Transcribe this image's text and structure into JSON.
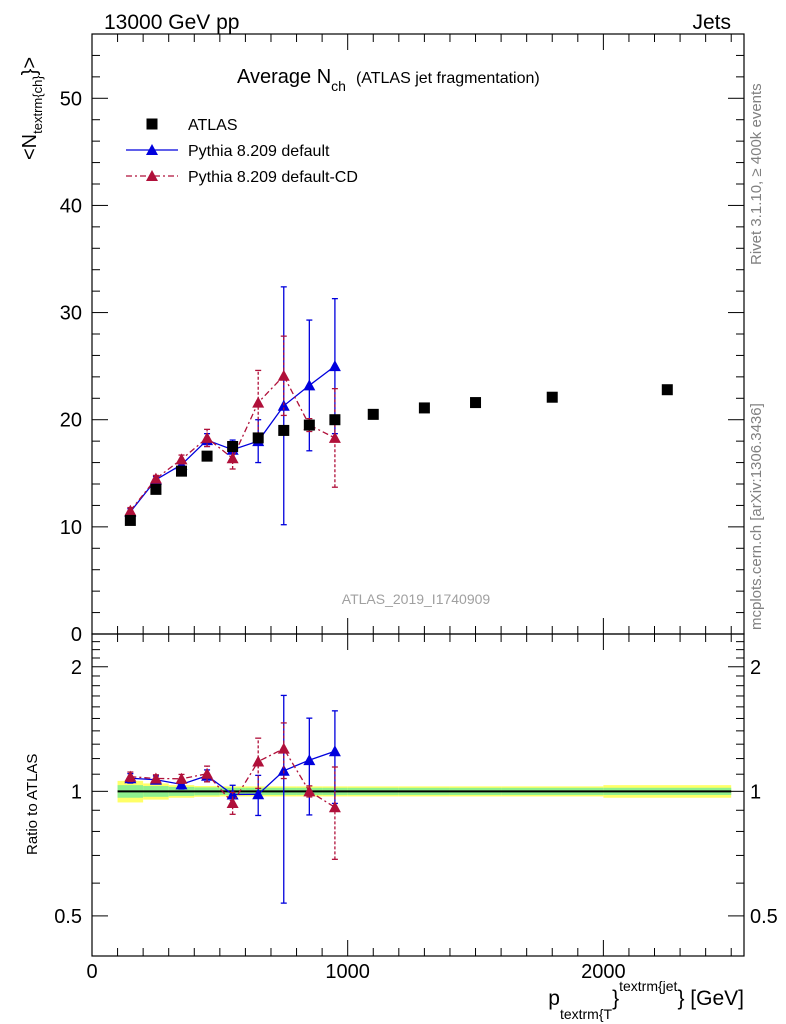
{
  "header": {
    "left": "13000 GeV pp",
    "right": "Jets"
  },
  "side_labels": {
    "rivet": "Rivet 3.1.10, ≥ 400k events",
    "mcplots": "mcplots.cern.ch [arXiv:1306.3436]"
  },
  "chart_data": {
    "type": "scatter",
    "title_main": "Average N",
    "title_sub": "ch",
    "title_note": "(ATLAS jet fragmentation)",
    "analysis_id": "ATLAS_2019_I1740909",
    "ylabel_main": "<N",
    "ylabel_sub": "textrm{ch}",
    "ylabel_end": "}>",
    "ratio_ylabel": "Ratio to ATLAS",
    "xlabel_p": "p",
    "xlabel_sub": "textrm{T",
    "xlabel_brace": "}",
    "xlabel_sup": "textrm{jet",
    "xlabel_end": "} [GeV]",
    "xlim": [
      0,
      2550
    ],
    "ylim": [
      0,
      56
    ],
    "ratio_ylim": [
      0.4,
      2.4
    ],
    "x_ticks": [
      0,
      1000,
      2000
    ],
    "x_tick_labels": [
      "0",
      "1000",
      "2000"
    ],
    "y_ticks": [
      0,
      10,
      20,
      30,
      40,
      50
    ],
    "y_tick_labels": [
      "0",
      "10",
      "20",
      "30",
      "40",
      "50"
    ],
    "ratio_ticks": [
      0.5,
      1,
      2
    ],
    "ratio_tick_labels": [
      "0.5",
      "1",
      "2"
    ],
    "legend": [
      "ATLAS",
      "Pythia 8.209 default",
      "Pythia 8.209 default-CD"
    ],
    "series": [
      {
        "name": "ATLAS",
        "color": "#000000",
        "x": [
          150,
          250,
          350,
          450,
          550,
          650,
          750,
          850,
          950,
          1100,
          1300,
          1500,
          1800,
          2250
        ],
        "y": [
          10.6,
          13.5,
          15.2,
          16.6,
          17.5,
          18.3,
          19.0,
          19.5,
          20.0,
          20.5,
          21.1,
          21.6,
          22.1,
          22.8
        ],
        "band_edges": [
          100,
          200,
          300,
          400,
          500,
          600,
          700,
          800,
          900,
          1000,
          1200,
          1400,
          1600,
          2000,
          2500
        ],
        "band_inner": [
          0.035,
          0.03,
          0.025,
          0.022,
          0.02,
          0.02,
          0.02,
          0.02,
          0.02,
          0.02,
          0.02,
          0.02,
          0.02,
          0.02
        ],
        "band_outer": [
          0.06,
          0.045,
          0.035,
          0.03,
          0.028,
          0.028,
          0.028,
          0.028,
          0.028,
          0.028,
          0.028,
          0.028,
          0.028,
          0.035
        ]
      },
      {
        "name": "Pythia 8.209 default",
        "color": "#0000dd",
        "x": [
          150,
          250,
          350,
          450,
          550,
          650,
          750,
          850,
          950
        ],
        "y": [
          11.4,
          14.4,
          15.8,
          18.1,
          17.2,
          18.0,
          21.3,
          23.2,
          25.0
        ],
        "err": [
          0.3,
          0.3,
          0.4,
          0.6,
          0.9,
          2.0,
          11.1,
          6.1,
          6.3
        ]
      },
      {
        "name": "Pythia 8.209 default-CD",
        "color": "#b0103a",
        "x": [
          150,
          250,
          350,
          450,
          550,
          650,
          750,
          850,
          950
        ],
        "y": [
          11.5,
          14.5,
          16.3,
          18.3,
          16.4,
          21.6,
          24.1,
          19.5,
          18.3
        ],
        "err": [
          0.3,
          0.3,
          0.4,
          0.8,
          1.0,
          3.0,
          3.7,
          0.6,
          4.6
        ]
      }
    ]
  }
}
